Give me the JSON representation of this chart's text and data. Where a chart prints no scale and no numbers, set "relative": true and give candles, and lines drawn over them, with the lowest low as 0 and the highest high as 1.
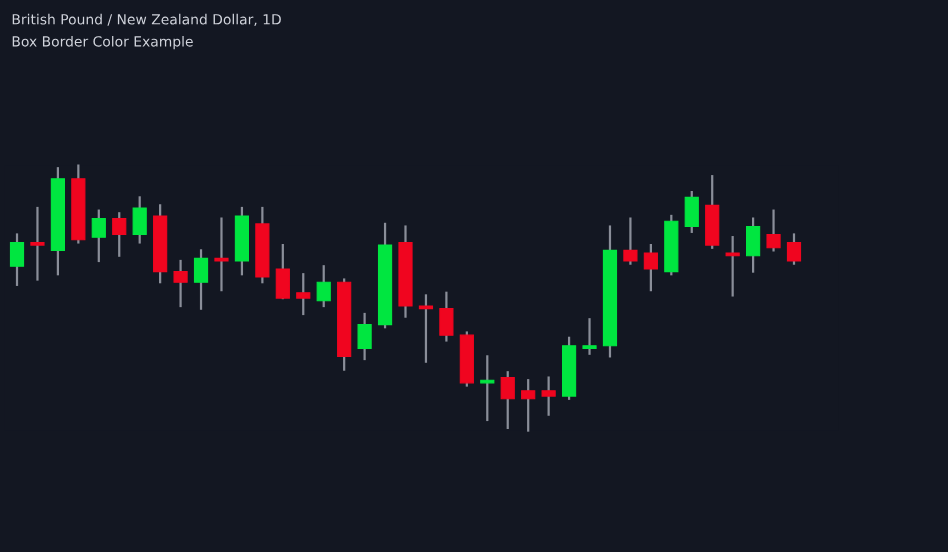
{
  "chart_data": {
    "type": "candlestick",
    "title": "British Pound / New Zealand Dollar, 1D",
    "subtitle": "Box Border Color Example",
    "relative": true,
    "categories": [
      null,
      null,
      null,
      null,
      null,
      null,
      null,
      null,
      null,
      null,
      null,
      null,
      null,
      null,
      null,
      null,
      null,
      null,
      null,
      null,
      null,
      null,
      null,
      null,
      null,
      null,
      null,
      null,
      null,
      null,
      null,
      null,
      null,
      null,
      null,
      null,
      null,
      null,
      null
    ],
    "ohlc": [
      [
        0.62,
        0.74,
        0.55,
        0.71
      ],
      [
        0.71,
        0.84,
        0.57,
        0.7
      ],
      [
        0.68,
        0.99,
        0.59,
        0.95
      ],
      [
        0.95,
        1.0,
        0.71,
        0.72
      ],
      [
        0.73,
        0.83,
        0.64,
        0.8
      ],
      [
        0.8,
        0.82,
        0.66,
        0.74
      ],
      [
        0.74,
        0.88,
        0.71,
        0.84
      ],
      [
        0.81,
        0.85,
        0.56,
        0.6
      ],
      [
        0.6,
        0.64,
        0.47,
        0.56
      ],
      [
        0.56,
        0.68,
        0.46,
        0.65
      ],
      [
        0.65,
        0.8,
        0.53,
        0.64
      ],
      [
        0.64,
        0.84,
        0.59,
        0.81
      ],
      [
        0.78,
        0.84,
        0.56,
        0.58
      ],
      [
        0.61,
        0.7,
        0.5,
        0.5
      ],
      [
        0.52,
        0.59,
        0.44,
        0.5
      ],
      [
        0.49,
        0.62,
        0.47,
        0.56
      ],
      [
        0.56,
        0.57,
        0.23,
        0.28
      ],
      [
        0.31,
        0.44,
        0.27,
        0.4
      ],
      [
        0.4,
        0.78,
        0.39,
        0.7
      ],
      [
        0.71,
        0.77,
        0.43,
        0.47
      ],
      [
        0.47,
        0.51,
        0.26,
        0.46
      ],
      [
        0.46,
        0.52,
        0.34,
        0.36
      ],
      [
        0.36,
        0.37,
        0.17,
        0.18
      ],
      [
        0.18,
        0.28,
        0.04,
        0.19
      ],
      [
        0.2,
        0.22,
        0.01,
        0.12
      ],
      [
        0.15,
        0.19,
        0.0,
        0.12
      ],
      [
        0.15,
        0.2,
        0.06,
        0.13
      ],
      [
        0.13,
        0.35,
        0.12,
        0.32
      ],
      [
        0.31,
        0.42,
        0.29,
        0.32
      ],
      [
        0.32,
        0.77,
        0.28,
        0.68
      ],
      [
        0.68,
        0.8,
        0.63,
        0.64
      ],
      [
        0.67,
        0.7,
        0.53,
        0.61
      ],
      [
        0.6,
        0.81,
        0.59,
        0.79
      ],
      [
        0.77,
        0.9,
        0.75,
        0.88
      ],
      [
        0.85,
        0.96,
        0.69,
        0.7
      ],
      [
        0.67,
        0.73,
        0.51,
        0.66
      ],
      [
        0.66,
        0.8,
        0.6,
        0.77
      ],
      [
        0.74,
        0.83,
        0.68,
        0.69
      ],
      [
        0.71,
        0.74,
        0.63,
        0.64
      ]
    ],
    "colors": [
      "#00e640",
      "#f0051f",
      "#00e640",
      "#f0051f",
      "#00e640",
      "#f0051f",
      "#00e640",
      "#f0051f",
      "#f0051f",
      "#00e640",
      "#f0051f",
      "#00e640",
      "#f0051f",
      "#f0051f",
      "#f0051f",
      "#00e640",
      "#f0051f",
      "#00e640",
      "#00e640",
      "#f0051f",
      "#f0051f",
      "#f0051f",
      "#f0051f",
      "#00e640",
      "#f0051f",
      "#f0051f",
      "#f0051f",
      "#00e640",
      "#00e640",
      "#00e640",
      "#f0051f",
      "#f0051f",
      "#00e640",
      "#00e640",
      "#f0051f",
      "#f0051f",
      "#00e640",
      "#f0051f",
      "#f0051f"
    ]
  }
}
